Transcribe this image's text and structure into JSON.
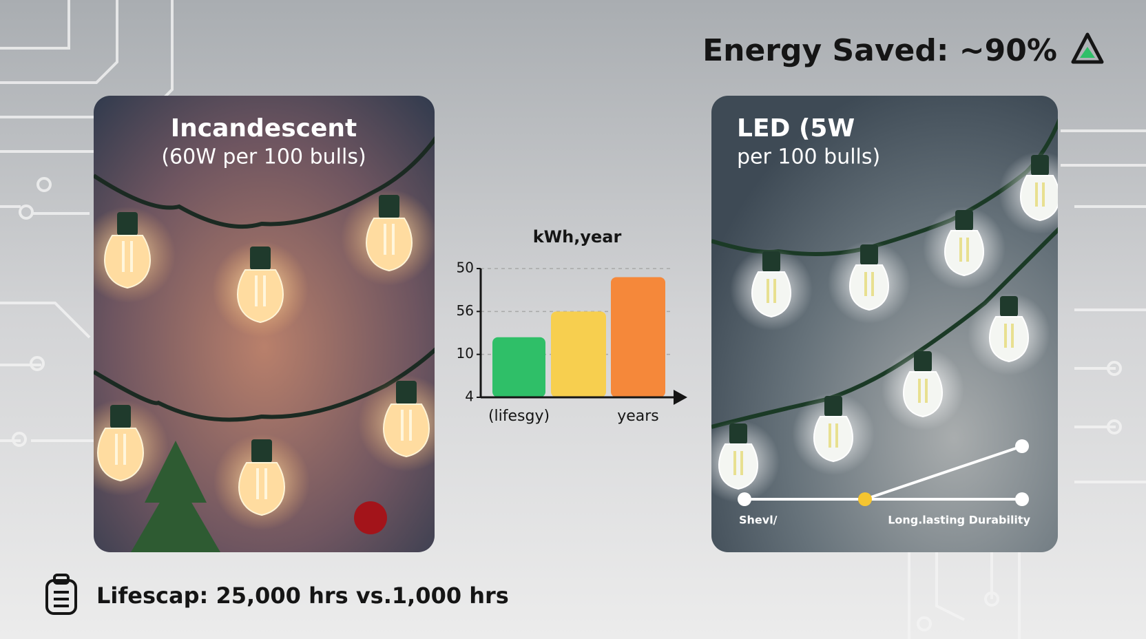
{
  "header": {
    "title": "Energy Saved: ~90%"
  },
  "panels": [
    {
      "title": "Incandescent",
      "subtitle": "(60W per 100 bulls)"
    },
    {
      "title": "LED (5W",
      "subtitle": "per 100 bulls)",
      "slider": {
        "start_label": "Shevl/",
        "end_label": "Long.lasting Durability"
      }
    }
  ],
  "chart": {
    "type": "bar",
    "title": "kWh,year",
    "categories": [
      "(lifesgy)",
      null,
      "years"
    ],
    "values": [
      1.4,
      2.0,
      2.8
    ],
    "colors": [
      "#2fbf68",
      "#f7cf4f",
      "#f5883a"
    ],
    "ylim": [
      0,
      3
    ],
    "yticks": [
      {
        "value": 0,
        "label": "4"
      },
      {
        "value": 1,
        "label": "10"
      },
      {
        "value": 2,
        "label": "56"
      },
      {
        "value": 3,
        "label": "50"
      }
    ],
    "grid": true
  },
  "footer": {
    "text": "Lifescap: 25,000 hrs vs.1,000 hrs"
  }
}
